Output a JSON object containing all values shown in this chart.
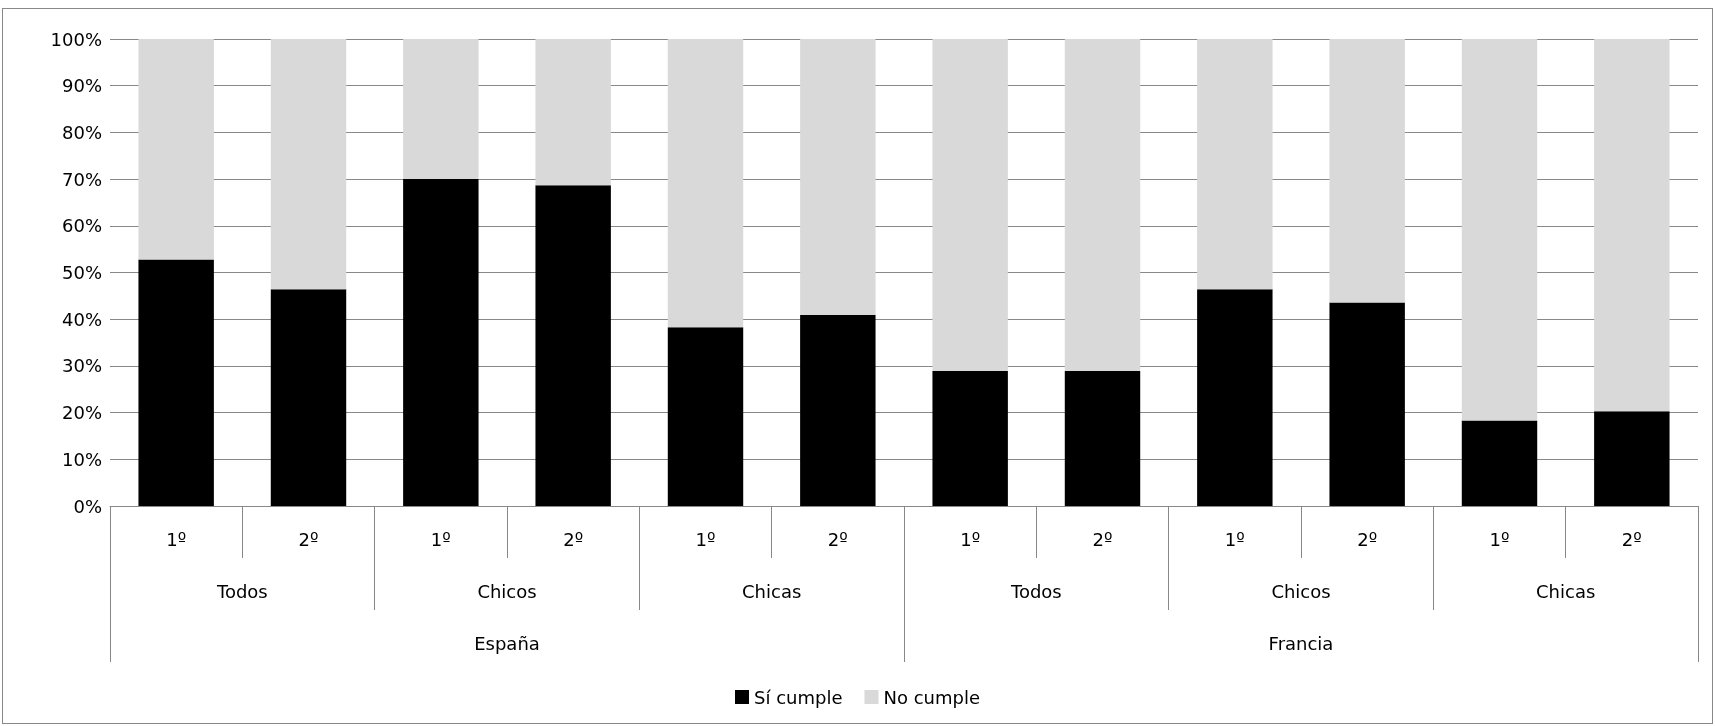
{
  "chart_data": {
    "type": "bar",
    "stacked": true,
    "categories": [
      "1º",
      "2º",
      "1º",
      "2º",
      "1º",
      "2º",
      "1º",
      "2º",
      "1º",
      "2º",
      "1º",
      "2º"
    ],
    "annotations": [
      "Todos",
      "Chicos",
      "Chicas",
      "Todos",
      "Chicos",
      "Chicas",
      "España",
      "Francia"
    ],
    "series": [
      {
        "name": "Sí cumple",
        "color": "#000000",
        "values": [
          52.8,
          46.4,
          70,
          68.7,
          38.3,
          40.9,
          28.9,
          28.9,
          46.4,
          43.6,
          18.3,
          20.3
        ]
      },
      {
        "name": "No cumple",
        "color": "#d9d9d9",
        "values": [
          47.2,
          53.6,
          30,
          31.3,
          61.7,
          59.1,
          71.1,
          71.1,
          53.6,
          56.4,
          81.7,
          79.7
        ]
      }
    ],
    "ylim": [
      0,
      100
    ],
    "yticks": [
      {
        "value": 0,
        "label": "0%"
      },
      {
        "value": 10,
        "label": "10%"
      },
      {
        "value": 20,
        "label": "20%"
      },
      {
        "value": 30,
        "label": "30%"
      },
      {
        "value": 40,
        "label": "40%"
      },
      {
        "value": 50,
        "label": "50%"
      },
      {
        "value": 60,
        "label": "60%"
      },
      {
        "value": 70,
        "label": "70%"
      },
      {
        "value": 80,
        "label": "80%"
      },
      {
        "value": 90,
        "label": "90%"
      },
      {
        "value": 100,
        "label": "100%"
      }
    ],
    "grid": "y",
    "legend": "bottom"
  }
}
